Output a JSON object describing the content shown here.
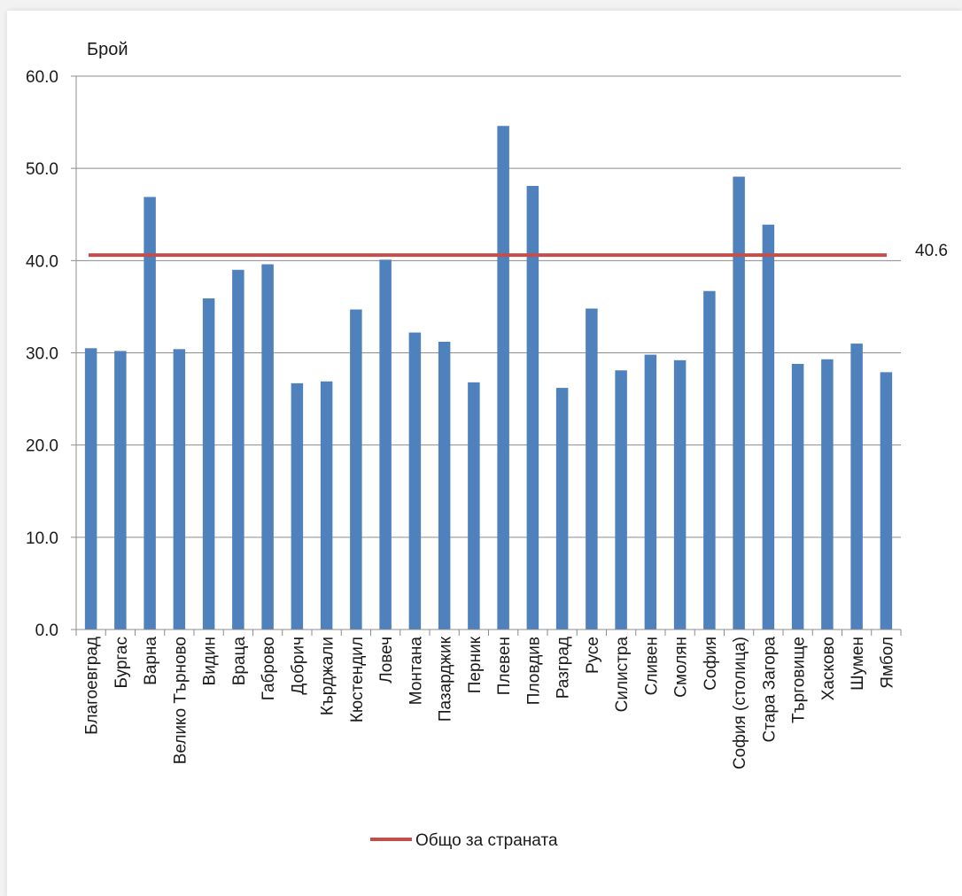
{
  "chart_data": {
    "type": "bar",
    "ylabel": "Брой",
    "ylim": [
      0,
      60
    ],
    "yticks": [
      "0.0",
      "10.0",
      "20.0",
      "30.0",
      "40.0",
      "50.0",
      "60.0"
    ],
    "grid": true,
    "categories": [
      "Благоевград",
      "Бургас",
      "Варна",
      "Велико Търново",
      "Видин",
      "Враца",
      "Габрово",
      "Добрич",
      "Кърджали",
      "Кюстендил",
      "Ловеч",
      "Монтана",
      "Пазарджик",
      "Перник",
      "Плевен",
      "Пловдив",
      "Разград",
      "Русе",
      "Силистра",
      "Сливен",
      "Смолян",
      "София",
      "София (столица)",
      "Стара Загора",
      "Търговище",
      "Хасково",
      "Шумен",
      "Ямбол"
    ],
    "series": [
      {
        "values": [
          30.5,
          30.2,
          46.9,
          30.4,
          35.9,
          39.0,
          39.6,
          26.7,
          26.9,
          34.7,
          40.1,
          32.2,
          31.2,
          26.8,
          54.6,
          48.1,
          26.2,
          34.8,
          28.1,
          29.8,
          29.2,
          36.7,
          49.1,
          43.9,
          28.8,
          29.3,
          31.0,
          27.9
        ],
        "color": "#4f81bd"
      }
    ],
    "reference_line": {
      "name": "Общо за страната",
      "value": 40.6,
      "label": "40.6",
      "color": "#c0504d"
    },
    "legend": {
      "position": "bottom",
      "entries": [
        "Общо за страната"
      ]
    }
  }
}
